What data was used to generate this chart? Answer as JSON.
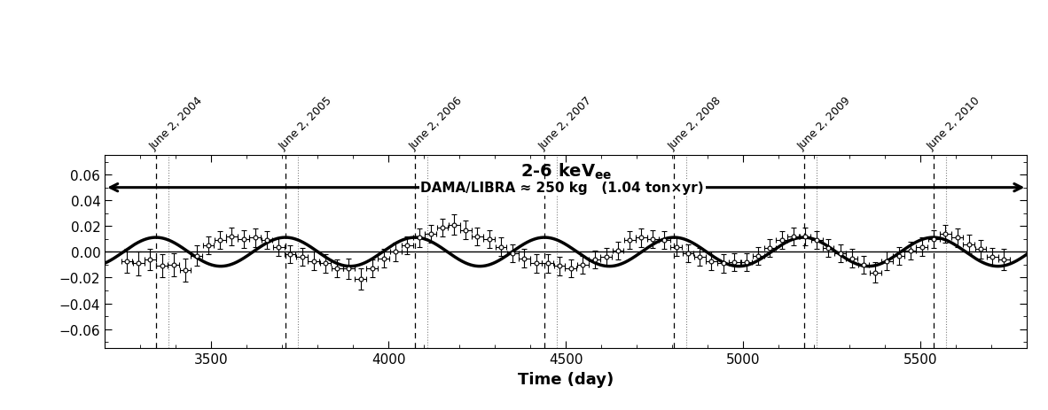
{
  "title": "2-6 keV",
  "title_sub": "ee",
  "xlabel": "Time (day)",
  "xlim": [
    3200,
    5800
  ],
  "ylim": [
    -0.075,
    0.075
  ],
  "yticks": [
    -0.06,
    -0.04,
    -0.02,
    0,
    0.02,
    0.04,
    0.06
  ],
  "xticks": [
    3500,
    4000,
    4500,
    5000,
    5500
  ],
  "background_color": "#ffffff",
  "sine_amplitude": 0.0112,
  "sine_period": 365.25,
  "sine_color": "#000000",
  "sine_linewidth": 2.5,
  "june2_days": [
    3344,
    3709,
    4075,
    4440,
    4805,
    5171,
    5536
  ],
  "june2_labels": [
    "June 2, 2004",
    "June 2, 2005",
    "June 2, 2006",
    "June 2, 2007",
    "June 2, 2008",
    "June 2, 2009",
    "June 2, 2010"
  ],
  "annotation_text": "DAMA/LIBRA ≈ 250 kg   (1.04 ton×yr)",
  "data_x": [
    3262,
    3295,
    3328,
    3361,
    3394,
    3427,
    3459,
    3492,
    3525,
    3558,
    3591,
    3624,
    3657,
    3690,
    3722,
    3756,
    3789,
    3822,
    3855,
    3888,
    3921,
    3954,
    3986,
    4020,
    4053,
    4086,
    4119,
    4152,
    4185,
    4218,
    4250,
    4284,
    4317,
    4350,
    4383,
    4416,
    4449,
    4482,
    4514,
    4548,
    4581,
    4614,
    4647,
    4680,
    4713,
    4745,
    4778,
    4811,
    4844,
    4877,
    4910,
    4943,
    4975,
    5009,
    5042,
    5075,
    5108,
    5141,
    5174,
    5207,
    5239,
    5273,
    5306,
    5339,
    5372,
    5405,
    5438,
    5471,
    5503,
    5537,
    5570,
    5603,
    5636,
    5669,
    5702,
    5735
  ],
  "data_y": [
    -0.007,
    -0.009,
    -0.006,
    -0.011,
    -0.01,
    -0.014,
    -0.003,
    0.005,
    0.009,
    0.012,
    0.01,
    0.011,
    0.009,
    0.004,
    -0.002,
    -0.004,
    -0.007,
    -0.009,
    -0.013,
    -0.013,
    -0.021,
    -0.013,
    -0.005,
    0.0,
    0.005,
    0.011,
    0.014,
    0.019,
    0.021,
    0.017,
    0.012,
    0.01,
    0.004,
    -0.001,
    -0.005,
    -0.009,
    -0.009,
    -0.011,
    -0.013,
    -0.01,
    -0.006,
    -0.004,
    0.001,
    0.009,
    0.011,
    0.01,
    0.009,
    0.004,
    -0.001,
    -0.004,
    -0.007,
    -0.009,
    -0.008,
    -0.008,
    -0.003,
    0.003,
    0.009,
    0.012,
    0.012,
    0.009,
    0.003,
    -0.001,
    -0.005,
    -0.01,
    -0.016,
    -0.007,
    -0.003,
    0.001,
    0.004,
    0.01,
    0.014,
    0.011,
    0.006,
    0.002,
    -0.004,
    -0.006
  ],
  "data_yerr": [
    0.009,
    0.009,
    0.008,
    0.009,
    0.009,
    0.009,
    0.008,
    0.007,
    0.007,
    0.007,
    0.007,
    0.007,
    0.007,
    0.007,
    0.007,
    0.007,
    0.007,
    0.007,
    0.007,
    0.008,
    0.008,
    0.007,
    0.007,
    0.007,
    0.007,
    0.007,
    0.007,
    0.007,
    0.008,
    0.007,
    0.007,
    0.007,
    0.007,
    0.007,
    0.007,
    0.007,
    0.007,
    0.007,
    0.007,
    0.007,
    0.007,
    0.007,
    0.007,
    0.007,
    0.007,
    0.007,
    0.007,
    0.007,
    0.007,
    0.007,
    0.007,
    0.007,
    0.007,
    0.007,
    0.007,
    0.007,
    0.007,
    0.007,
    0.007,
    0.007,
    0.007,
    0.007,
    0.007,
    0.007,
    0.008,
    0.007,
    0.007,
    0.007,
    0.007,
    0.007,
    0.007,
    0.007,
    0.007,
    0.007,
    0.007,
    0.008
  ],
  "data_xerr": 16
}
